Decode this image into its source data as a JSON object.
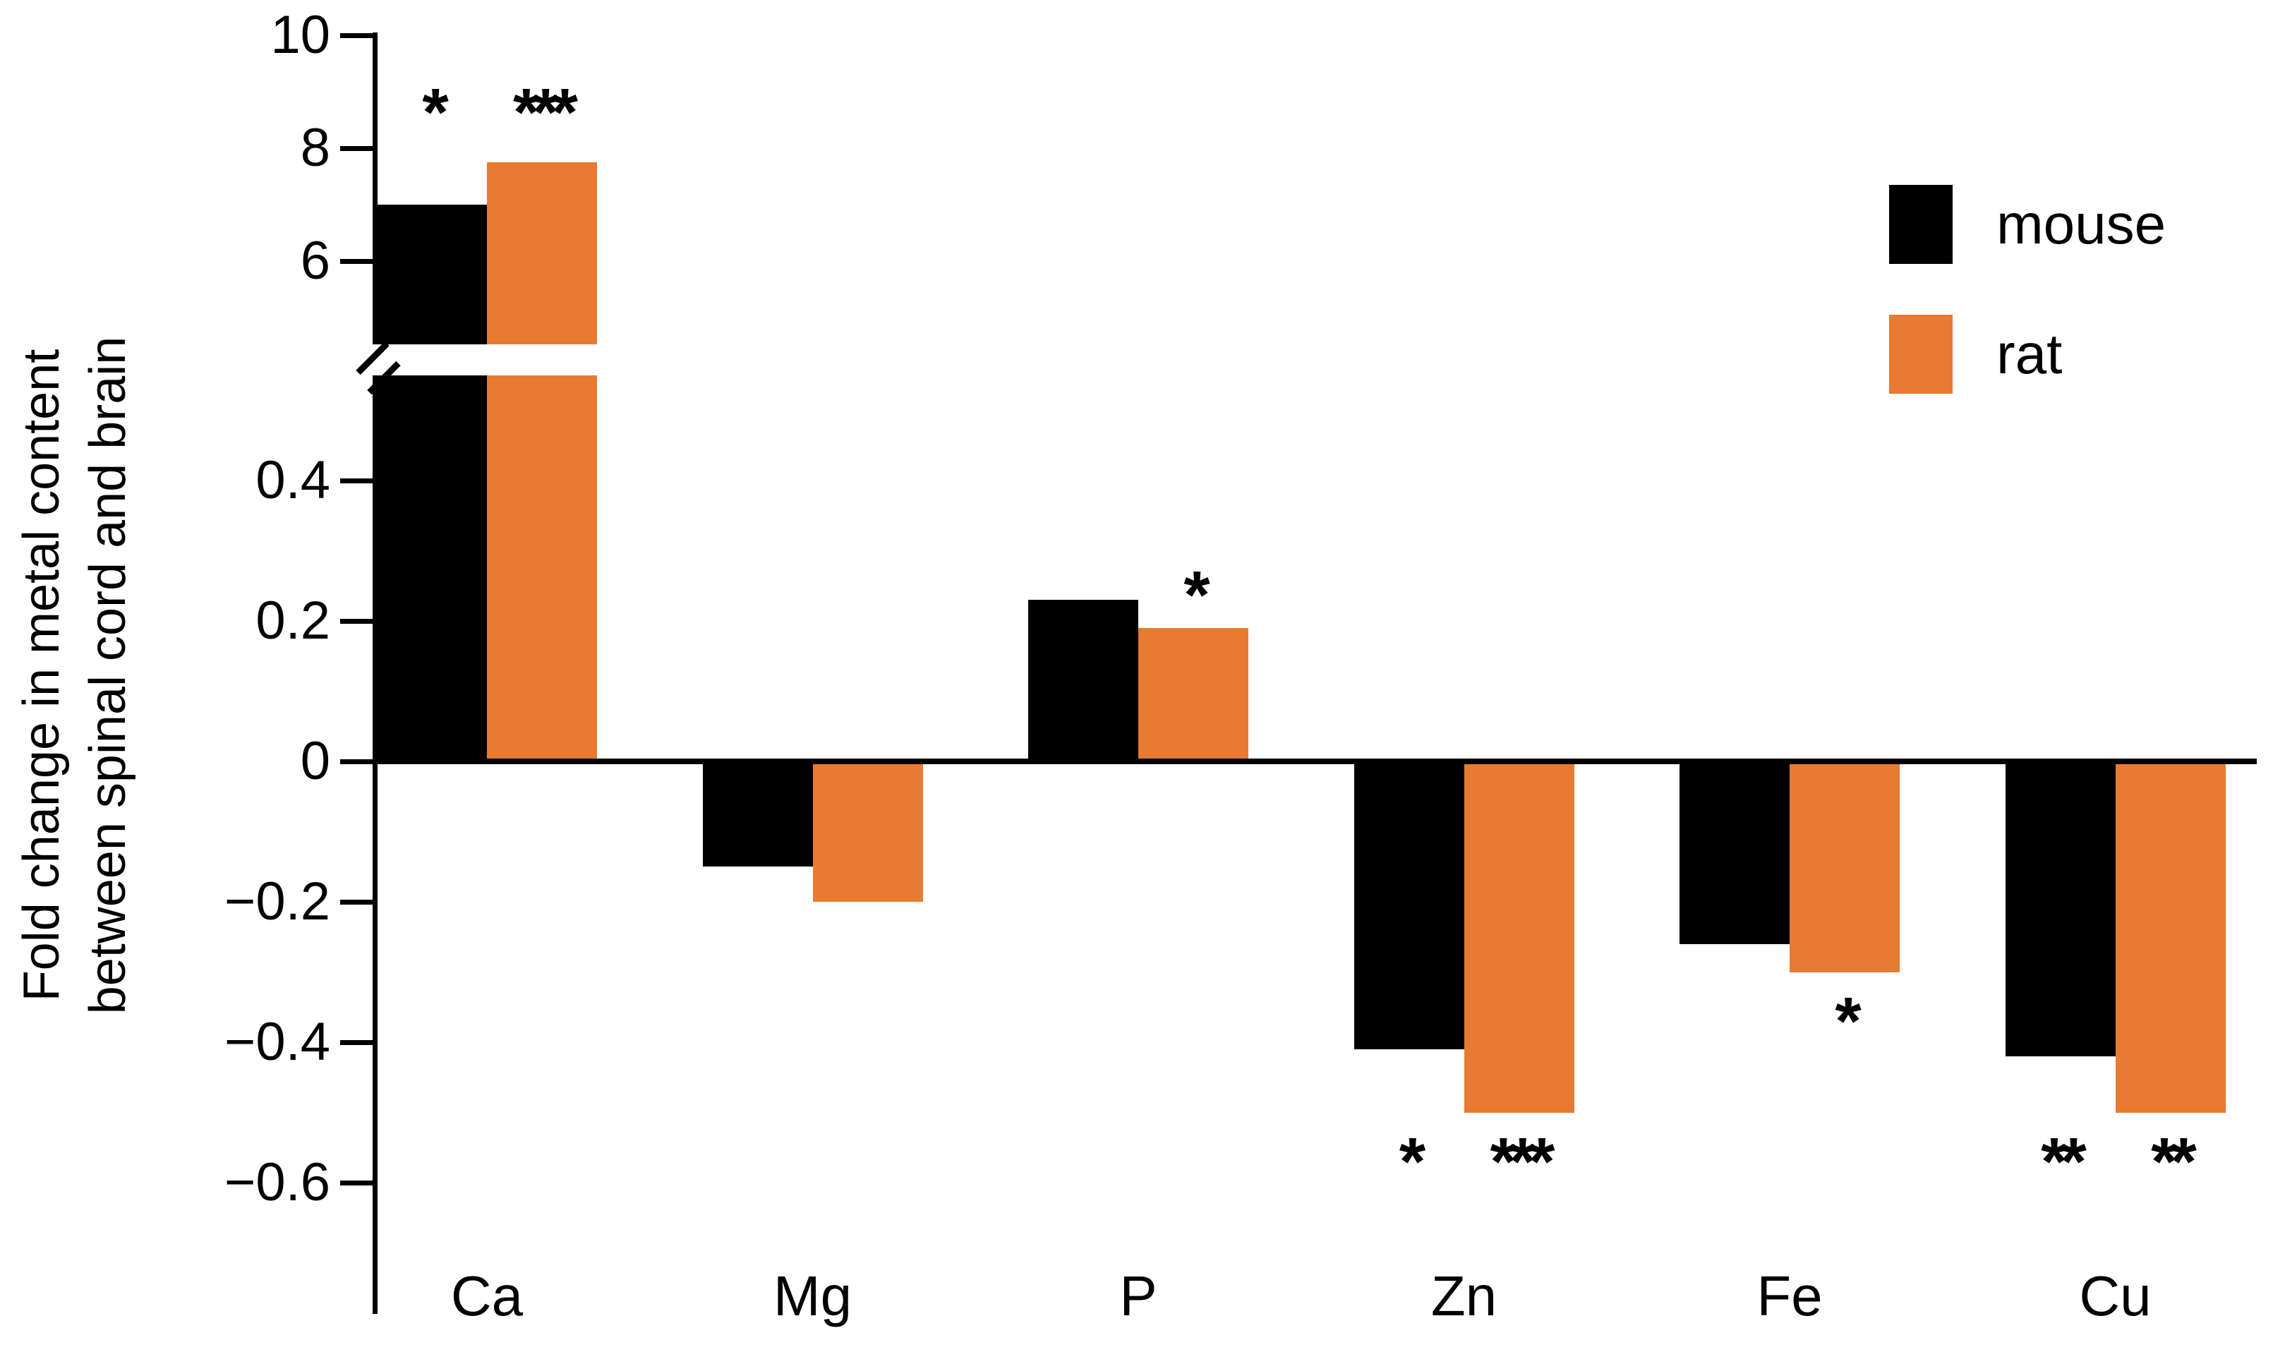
{
  "chart_data": {
    "type": "bar",
    "title": "",
    "ylabel": "Fold change in metal content between spinal cord and brain",
    "ylabel_lines": [
      "Fold change in metal content",
      "between spinal cord and brain"
    ],
    "xlabel": "",
    "categories": [
      "Ca",
      "Mg",
      "P",
      "Zn",
      "Fe",
      "Cu"
    ],
    "series": [
      {
        "name": "mouse",
        "color": "#000000",
        "values": [
          7.0,
          -0.15,
          0.23,
          -0.41,
          -0.26,
          -0.42
        ],
        "significance": [
          "*",
          "",
          "",
          "*",
          "",
          "**"
        ]
      },
      {
        "name": "rat",
        "color": "#E87A32",
        "values": [
          7.75,
          -0.2,
          0.19,
          -0.5,
          -0.3,
          -0.5
        ],
        "significance": [
          "***",
          "",
          "*",
          "***",
          "*",
          "**"
        ]
      }
    ],
    "axis": {
      "upper_ticks": [
        {
          "value": 6,
          "label": "6"
        },
        {
          "value": 8,
          "label": "8"
        },
        {
          "value": 10,
          "label": "10"
        }
      ],
      "lower_ticks": [
        {
          "value": 0.4,
          "label": "0.4"
        },
        {
          "value": 0.2,
          "label": "0.2"
        },
        {
          "value": 0,
          "label": "0"
        },
        {
          "value": -0.2,
          "label": "−0.2"
        },
        {
          "value": -0.4,
          "label": "−0.4"
        },
        {
          "value": -0.6,
          "label": "−0.6"
        }
      ],
      "broken_axis": true,
      "lower_range": [
        -0.7,
        0.55
      ],
      "upper_range": [
        4.5,
        10.3
      ],
      "grid": false
    },
    "legend": {
      "position": "top-right",
      "entries": [
        {
          "label": "mouse",
          "color": "#000000"
        },
        {
          "label": "rat",
          "color": "#E87A32"
        }
      ]
    }
  }
}
